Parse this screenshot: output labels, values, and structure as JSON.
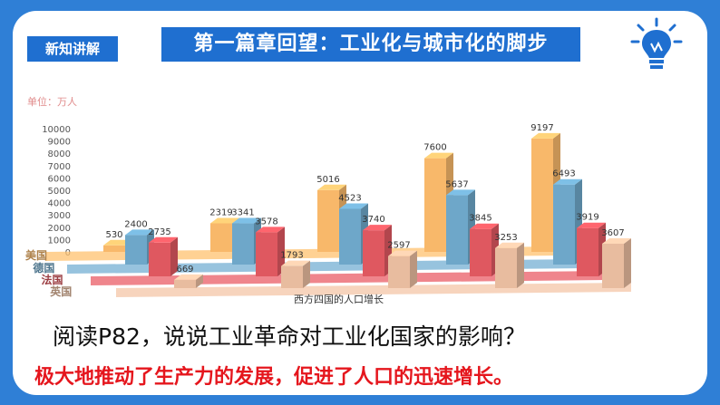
{
  "badge": "新知讲解",
  "title": "第一篇章回望：工业化与城市化的脚步",
  "question": "阅读P82，说说工业革命对工业化国家的影响？",
  "answer": "极大地推动了生产力的发展，促进了人口的迅速增长。",
  "icons": {
    "bulb": "lightbulb-icon"
  },
  "chart_data": {
    "type": "bar",
    "unit_label": "单位：万人",
    "caption": "西方四国的人口增长",
    "ylim": [
      0,
      10000
    ],
    "yticks": [
      0,
      1000,
      2000,
      3000,
      4000,
      5000,
      6000,
      7000,
      8000,
      9000,
      10000
    ],
    "categories": [
      "",
      "",
      "",
      "",
      ""
    ],
    "series": [
      {
        "name": "美国",
        "color": "#f8b86a",
        "values": [
          530,
          2319,
          5016,
          7600,
          9197
        ]
      },
      {
        "name": "德国",
        "color": "#6ea7c9",
        "values": [
          2400,
          3341,
          4523,
          5637,
          6493
        ]
      },
      {
        "name": "法国",
        "color": "#df5860",
        "values": [
          2735,
          3578,
          3740,
          3845,
          3919
        ]
      },
      {
        "name": "英国",
        "color": "#e8bc9f",
        "values": [
          669,
          1793,
          2597,
          3253,
          3607
        ]
      }
    ]
  }
}
